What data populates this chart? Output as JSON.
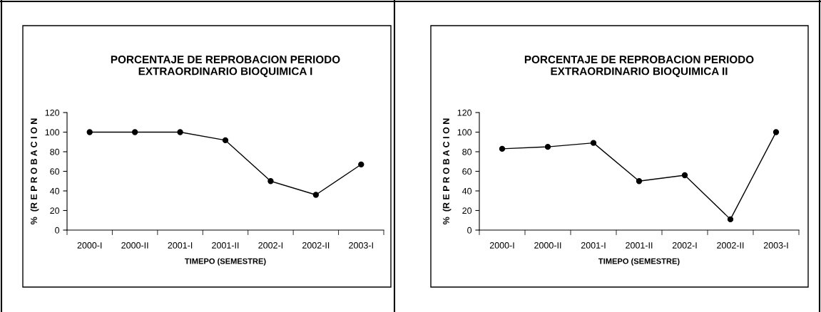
{
  "chart_data": [
    {
      "type": "line",
      "title": "PORCENTAJE DE REPROBACION PERIODO\nEXTRAORDINARIO BIOQUIMICA I",
      "xlabel": "TIMEPO (SEMESTRE)",
      "ylabel": "%  (R E P R O B A C I O N",
      "categories": [
        "2000-I",
        "2000-II",
        "2001-I",
        "2001-II",
        "2002-I",
        "2002-II",
        "2003-I"
      ],
      "series": [
        {
          "color": "#000000",
          "values": [
            100,
            100,
            100,
            91.7,
            50,
            36,
            67
          ]
        }
      ],
      "ylim": [
        0,
        120
      ],
      "yticks": [
        0,
        20,
        40,
        60,
        80,
        100,
        120
      ],
      "marker": "circle",
      "line_style": "solid",
      "grid": false
    },
    {
      "type": "line",
      "title": "PORCENTAJE DE REPROBACION PERIODO\nEXTRAORDINARIO BIOQUIMICA II",
      "xlabel": "TIMEPO (SEMESTRE)",
      "ylabel": "%  (R E P R O B A C I O N",
      "categories": [
        "2000-I",
        "2000-II",
        "2001-I",
        "2001-II",
        "2002-I",
        "2002-II",
        "2003-I"
      ],
      "series": [
        {
          "color": "#000000",
          "values": [
            83,
            85,
            89,
            50,
            56,
            11,
            100
          ]
        }
      ],
      "ylim": [
        0,
        120
      ],
      "yticks": [
        0,
        20,
        40,
        60,
        80,
        100,
        120
      ],
      "marker": "circle",
      "line_style": "solid",
      "grid": false
    }
  ]
}
